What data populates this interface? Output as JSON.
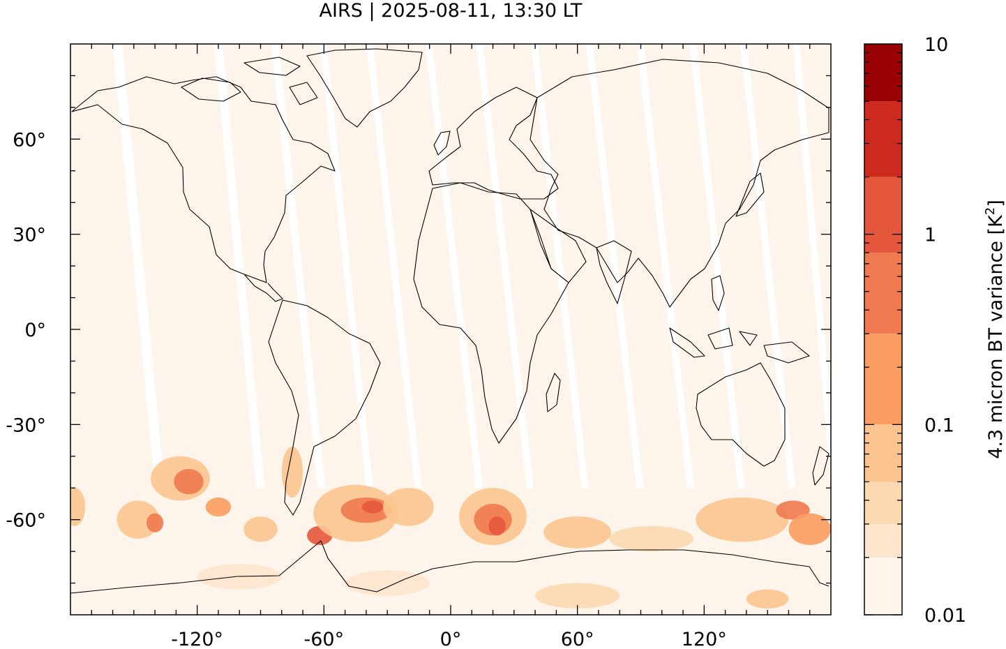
{
  "title": "AIRS | 2025-08-11, 13:30 LT",
  "map": {
    "projection": "equirectangular",
    "lon_range": [
      -180,
      180
    ],
    "lat_range": [
      -90,
      90
    ],
    "lon_ticks": [
      {
        "value": -120,
        "label": "-120°"
      },
      {
        "value": -60,
        "label": "-60°"
      },
      {
        "value": 0,
        "label": "0°"
      },
      {
        "value": 60,
        "label": "60°"
      },
      {
        "value": 120,
        "label": "120°"
      }
    ],
    "lat_ticks": [
      {
        "value": 60,
        "label": "60°"
      },
      {
        "value": 30,
        "label": "30°"
      },
      {
        "value": 0,
        "label": "0°"
      },
      {
        "value": -30,
        "label": "-30°"
      },
      {
        "value": -60,
        "label": "-60°"
      }
    ],
    "background_color": "#fdf5eb",
    "gap_color": "#ffffff",
    "coastline_color": "#000000"
  },
  "colorbar": {
    "label_main": "4.3 micron BT variance [K",
    "label_sup": "2",
    "label_end": "]",
    "scale": "log",
    "range": [
      0.01,
      10
    ],
    "tick_labels": [
      {
        "value": 10,
        "label": "10"
      },
      {
        "value": 1,
        "label": "1"
      },
      {
        "value": 0.1,
        "label": "0.1"
      },
      {
        "value": 0.01,
        "label": "0.01"
      }
    ],
    "bands": [
      {
        "from": 0.01,
        "to": 0.02,
        "color": "#fef5eb"
      },
      {
        "from": 0.02,
        "to": 0.03,
        "color": "#fde6cd"
      },
      {
        "from": 0.03,
        "to": 0.05,
        "color": "#fcd9b0"
      },
      {
        "from": 0.05,
        "to": 0.1,
        "color": "#fcc58f"
      },
      {
        "from": 0.1,
        "to": 0.3,
        "color": "#fb9c62"
      },
      {
        "from": 0.3,
        "to": 0.8,
        "color": "#ef7a4f"
      },
      {
        "from": 0.8,
        "to": 2,
        "color": "#e5573d"
      },
      {
        "from": 2,
        "to": 5,
        "color": "#cc2a1e"
      },
      {
        "from": 5,
        "to": 10,
        "color": "#9a0305"
      }
    ]
  },
  "swath_gaps": [
    {
      "lon_top": -160,
      "lon_bottom": -140,
      "w": 14
    },
    {
      "lon_top": -112,
      "lon_bottom": -92,
      "w": 12
    },
    {
      "lon_top": -85,
      "lon_bottom": -63,
      "w": 11
    },
    {
      "lon_top": -62,
      "lon_bottom": -40,
      "w": 10
    },
    {
      "lon_top": -40,
      "lon_bottom": -17,
      "w": 10
    },
    {
      "lon_top": -12,
      "lon_bottom": 12,
      "w": 10
    },
    {
      "lon_top": 12,
      "lon_bottom": 36,
      "w": 10
    },
    {
      "lon_top": 38,
      "lon_bottom": 62,
      "w": 10
    },
    {
      "lon_top": 64,
      "lon_bottom": 88,
      "w": 10
    },
    {
      "lon_top": 88,
      "lon_bottom": 112,
      "w": 10
    },
    {
      "lon_top": 113,
      "lon_bottom": 136,
      "w": 10
    },
    {
      "lon_top": 137,
      "lon_bottom": 160,
      "w": 10
    },
    {
      "lon_top": 162,
      "lon_bottom": 180,
      "w": 10
    }
  ],
  "variance_patches": [
    {
      "lon": -128,
      "lat": -47,
      "rlon": 14,
      "rlat": 7,
      "level": 3
    },
    {
      "lon": -124,
      "lat": -48,
      "rlon": 7,
      "rlat": 4,
      "level": 5
    },
    {
      "lon": -110,
      "lat": -56,
      "rlon": 6,
      "rlat": 3,
      "level": 4
    },
    {
      "lon": -148,
      "lat": -60,
      "rlon": 10,
      "rlat": 6,
      "level": 3
    },
    {
      "lon": -140,
      "lat": -61,
      "rlon": 4,
      "rlat": 3,
      "level": 5
    },
    {
      "lon": -178,
      "lat": -56,
      "rlon": 5,
      "rlat": 6,
      "level": 3
    },
    {
      "lon": -90,
      "lat": -63,
      "rlon": 8,
      "rlat": 4,
      "level": 3
    },
    {
      "lon": -75,
      "lat": -45,
      "rlon": 5,
      "rlat": 8,
      "level": 3
    },
    {
      "lon": -62,
      "lat": -65,
      "rlon": 6,
      "rlat": 3,
      "level": 6
    },
    {
      "lon": -45,
      "lat": -58,
      "rlon": 20,
      "rlat": 9,
      "level": 3
    },
    {
      "lon": -40,
      "lat": -57,
      "rlon": 12,
      "rlat": 4,
      "level": 5
    },
    {
      "lon": -37,
      "lat": -56,
      "rlon": 5,
      "rlat": 2,
      "level": 6
    },
    {
      "lon": -20,
      "lat": -56,
      "rlon": 12,
      "rlat": 6,
      "level": 3
    },
    {
      "lon": 20,
      "lat": -59,
      "rlon": 16,
      "rlat": 9,
      "level": 3
    },
    {
      "lon": 20,
      "lat": -60,
      "rlon": 9,
      "rlat": 5,
      "level": 5
    },
    {
      "lon": 22,
      "lat": -62,
      "rlon": 4,
      "rlat": 3,
      "level": 6
    },
    {
      "lon": 60,
      "lat": -64,
      "rlon": 16,
      "rlat": 5,
      "level": 3
    },
    {
      "lon": 95,
      "lat": -66,
      "rlon": 20,
      "rlat": 4,
      "level": 2
    },
    {
      "lon": 138,
      "lat": -60,
      "rlon": 22,
      "rlat": 7,
      "level": 3
    },
    {
      "lon": 162,
      "lat": -57,
      "rlon": 8,
      "rlat": 3,
      "level": 5
    },
    {
      "lon": 170,
      "lat": -63,
      "rlon": 10,
      "rlat": 5,
      "level": 4
    },
    {
      "lon": 150,
      "lat": -85,
      "rlon": 10,
      "rlat": 3,
      "level": 3
    },
    {
      "lon": 60,
      "lat": -84,
      "rlon": 20,
      "rlat": 4,
      "level": 2
    },
    {
      "lon": -100,
      "lat": -78,
      "rlon": 20,
      "rlat": 4,
      "level": 1
    },
    {
      "lon": -30,
      "lat": -80,
      "rlon": 20,
      "rlat": 4,
      "level": 1
    }
  ]
}
